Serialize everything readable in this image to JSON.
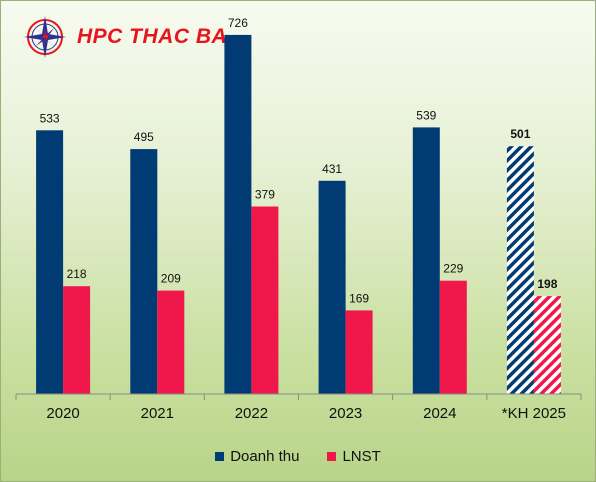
{
  "brand": {
    "name": "HPC THAC BA",
    "logo_colors": {
      "star": "#2e3192",
      "ring": "#e8141c",
      "bolt": "#e8141c"
    }
  },
  "chart_data": {
    "type": "bar",
    "categories": [
      "2020",
      "2021",
      "2022",
      "2023",
      "2024",
      "*KH 2025"
    ],
    "series": [
      {
        "name": "Doanh thu",
        "color": "#003b73",
        "values": [
          533,
          495,
          726,
          431,
          539,
          501
        ]
      },
      {
        "name": "LNST",
        "color": "#f0184a",
        "values": [
          218,
          209,
          379,
          169,
          229,
          198
        ]
      }
    ],
    "value_labels": {
      "Doanh thu": [
        "533",
        "495",
        "726",
        "431",
        "539",
        "501"
      ],
      "LNST": [
        "218",
        "209",
        "379",
        "169",
        "229",
        "198"
      ]
    },
    "hatched_categories": [
      "*KH 2025"
    ],
    "bold_label_categories": [
      "*KH 2025"
    ],
    "title": "",
    "xlabel": "",
    "ylabel": "",
    "ylim": [
      0,
      750
    ],
    "grid": false,
    "legend_position": "bottom"
  }
}
